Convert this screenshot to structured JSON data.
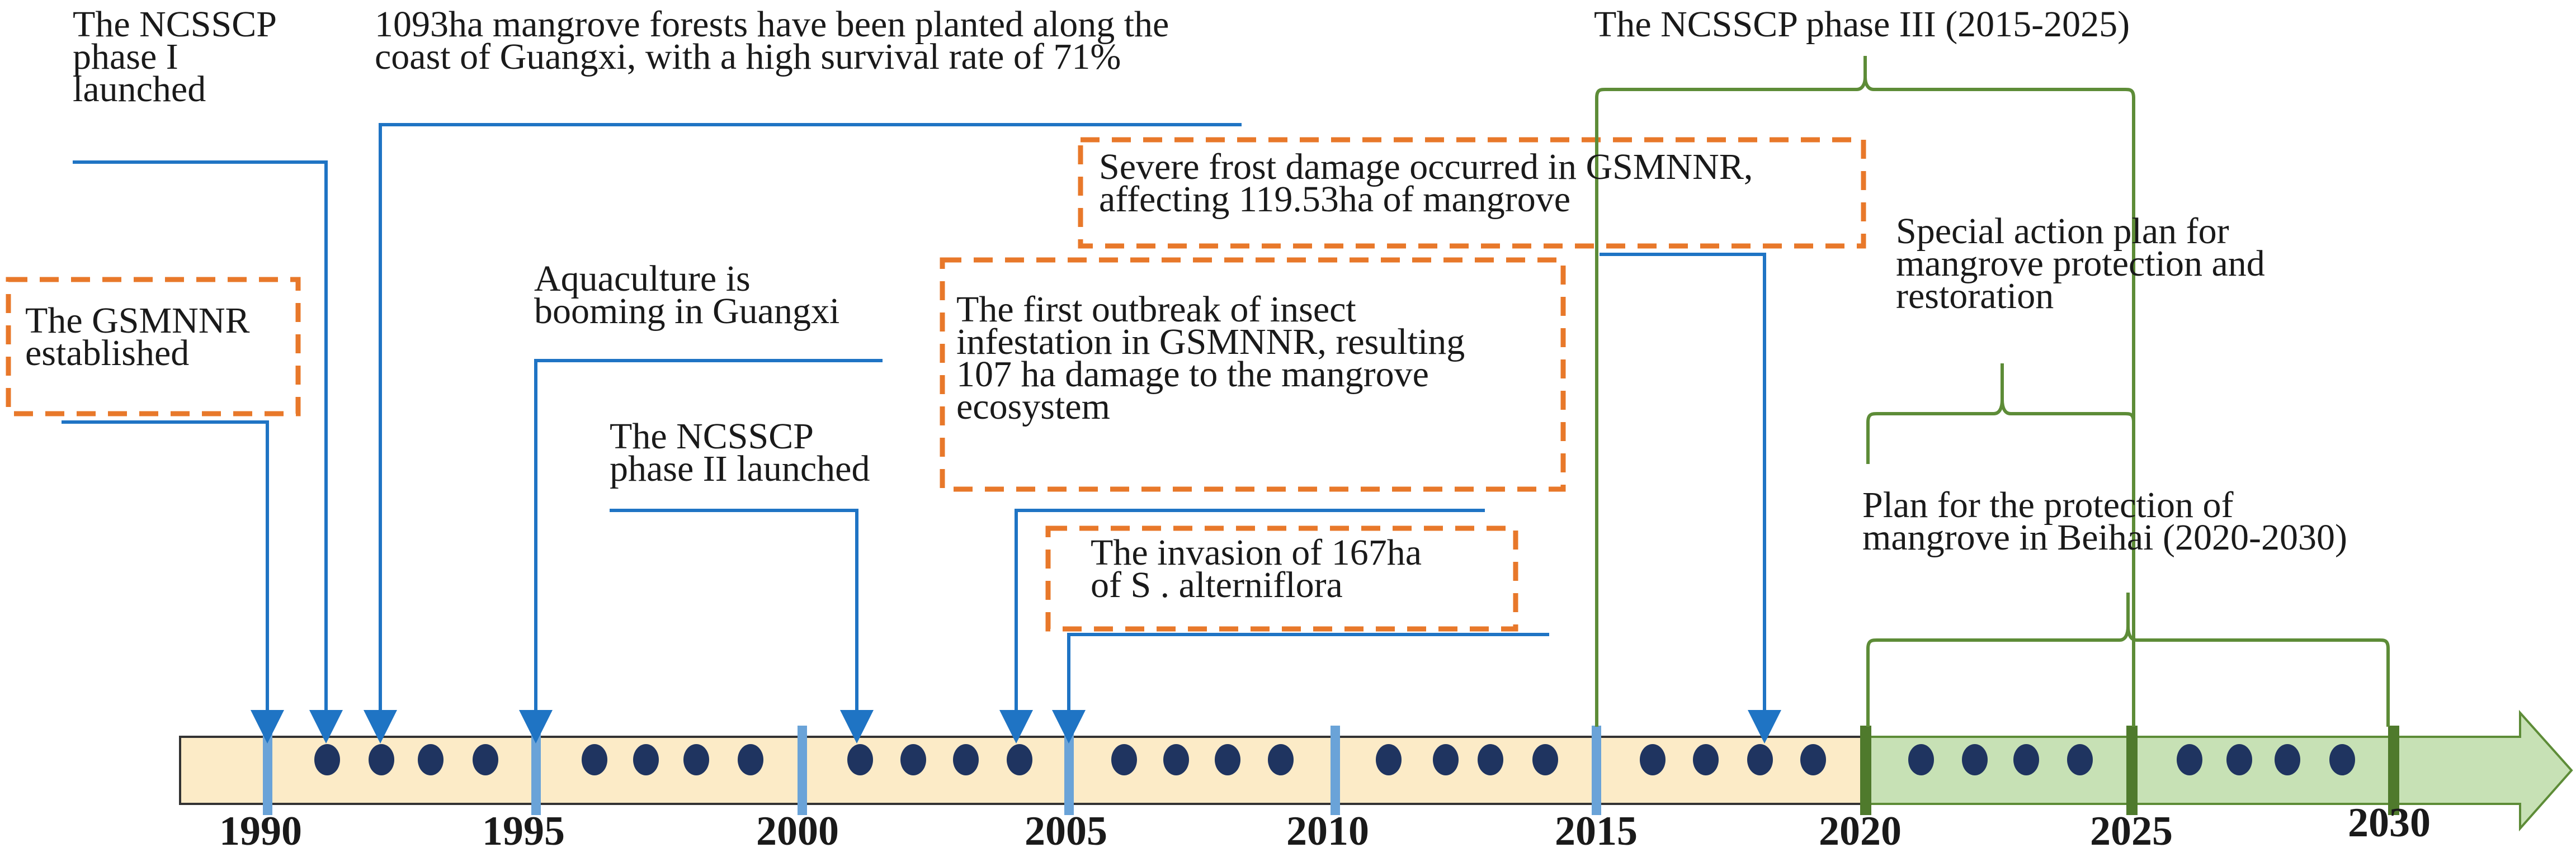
{
  "colors": {
    "blue_line": "#1f74c4",
    "orange_dash": "#e8782a",
    "green": "#5d8c37",
    "timeline_fill": "#fcebc7",
    "future_fill": "#c7e1b5",
    "dot": "#1f3460",
    "tick_blue": "#6aa3d8",
    "tick_green": "#4f7a2c"
  },
  "years": [
    "1990",
    "1995",
    "2000",
    "2005",
    "2010",
    "2015",
    "2020",
    "2025",
    "2030"
  ],
  "events": {
    "gsmnnr": {
      "l1": "The GSMNNR",
      "l2": "established"
    },
    "phase1": {
      "l1": "The NCSSCP",
      "l2": "phase I",
      "l3": "launched"
    },
    "planted": {
      "l1": "1093ha mangrove forests have been planted along the",
      "l2": "coast of Guangxi, with a high survival rate of 71%"
    },
    "aquaculture": {
      "l1": "Aquaculture is",
      "l2": "booming in Guangxi"
    },
    "phase2": {
      "l1": "The NCSSCP",
      "l2": "phase II launched"
    },
    "insect": {
      "l1": "The first outbreak of insect",
      "l2": "infestation in GSMNNR, resulting",
      "l3": "107 ha damage to the mangrove",
      "l4": "ecosystem"
    },
    "invasion": {
      "l1": "The invasion of 167ha",
      "l2": "of S . alterniflora"
    },
    "frost": {
      "l1": "Severe frost damage occurred in GSMNNR,",
      "l2": "affecting 119.53ha of mangrove"
    },
    "phase3": {
      "l1": "The NCSSCP phase III (2015-2025)"
    },
    "action_plan": {
      "l1": "Special action plan for",
      "l2": "mangrove protection and",
      "l3": "restoration"
    },
    "beihai_plan": {
      "l1": "Plan for the protection of",
      "l2": "mangrove in Beihai (2020-2030)"
    }
  }
}
